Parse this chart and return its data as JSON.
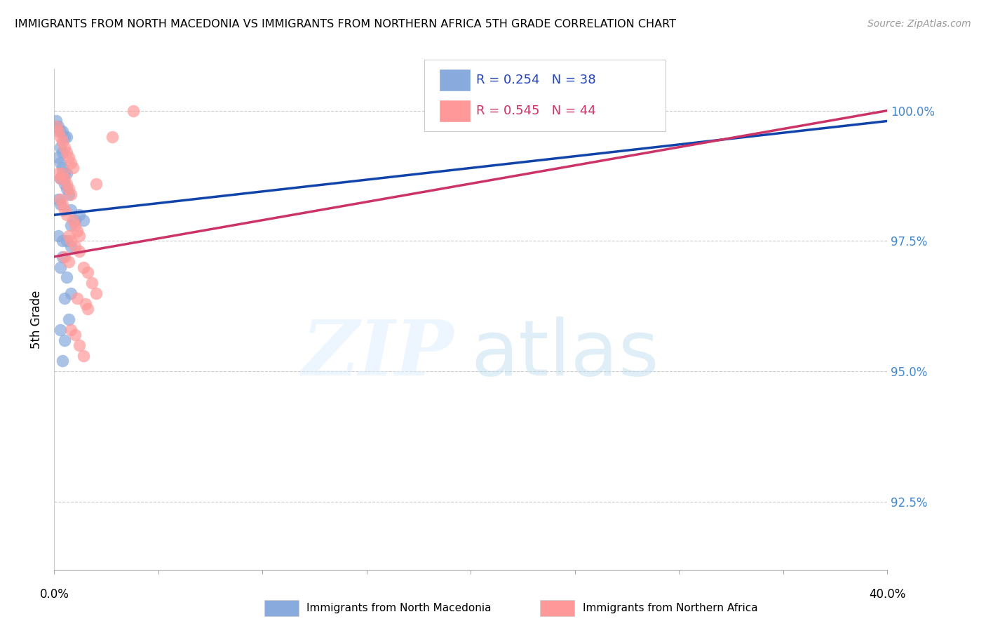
{
  "title": "IMMIGRANTS FROM NORTH MACEDONIA VS IMMIGRANTS FROM NORTHERN AFRICA 5TH GRADE CORRELATION CHART",
  "source": "Source: ZipAtlas.com",
  "ylabel": "5th Grade",
  "y_ticks": [
    92.5,
    95.0,
    97.5,
    100.0
  ],
  "y_tick_labels": [
    "92.5%",
    "95.0%",
    "97.5%",
    "100.0%"
  ],
  "xlim": [
    0.0,
    0.4
  ],
  "ylim": [
    91.2,
    100.8
  ],
  "blue_R": 0.254,
  "blue_N": 38,
  "pink_R": 0.545,
  "pink_N": 44,
  "blue_color": "#88AADD",
  "pink_color": "#FF9999",
  "blue_line_color": "#1144AA",
  "pink_line_color": "#CC3366",
  "legend_label_blue": "Immigrants from North Macedonia",
  "legend_label_pink": "Immigrants from Northern Africa",
  "blue_line": [
    [
      0.0,
      98.0
    ],
    [
      0.4,
      99.8
    ]
  ],
  "pink_line": [
    [
      0.0,
      97.2
    ],
    [
      0.4,
      100.0
    ]
  ],
  "blue_dots_x": [
    0.001,
    0.002,
    0.003,
    0.004,
    0.005,
    0.006,
    0.003,
    0.004,
    0.002,
    0.003,
    0.004,
    0.005,
    0.006,
    0.003,
    0.004,
    0.005,
    0.006,
    0.007,
    0.002,
    0.003,
    0.008,
    0.012,
    0.014,
    0.01,
    0.008,
    0.002,
    0.004,
    0.006,
    0.008,
    0.004,
    0.003,
    0.006,
    0.008,
    0.005,
    0.007,
    0.003,
    0.005,
    0.004
  ],
  "blue_dots_y": [
    99.8,
    99.7,
    99.6,
    99.6,
    99.5,
    99.5,
    99.3,
    99.2,
    99.1,
    99.0,
    98.9,
    98.8,
    98.8,
    98.7,
    98.7,
    98.6,
    98.5,
    98.4,
    98.3,
    98.2,
    98.1,
    98.0,
    97.9,
    97.9,
    97.8,
    97.6,
    97.5,
    97.5,
    97.4,
    97.2,
    97.0,
    96.8,
    96.5,
    96.4,
    96.0,
    95.8,
    95.6,
    95.2
  ],
  "pink_dots_x": [
    0.001,
    0.002,
    0.003,
    0.004,
    0.005,
    0.006,
    0.007,
    0.008,
    0.009,
    0.002,
    0.003,
    0.004,
    0.005,
    0.006,
    0.007,
    0.008,
    0.003,
    0.004,
    0.005,
    0.006,
    0.009,
    0.01,
    0.011,
    0.012,
    0.007,
    0.008,
    0.01,
    0.012,
    0.005,
    0.007,
    0.014,
    0.016,
    0.018,
    0.02,
    0.011,
    0.015,
    0.016,
    0.008,
    0.01,
    0.012,
    0.014,
    0.038,
    0.028,
    0.02
  ],
  "pink_dots_y": [
    99.7,
    99.6,
    99.5,
    99.4,
    99.3,
    99.2,
    99.1,
    99.0,
    98.9,
    98.8,
    98.7,
    98.8,
    98.7,
    98.6,
    98.5,
    98.4,
    98.3,
    98.2,
    98.1,
    98.0,
    97.9,
    97.8,
    97.7,
    97.6,
    97.6,
    97.5,
    97.4,
    97.3,
    97.2,
    97.1,
    97.0,
    96.9,
    96.7,
    96.5,
    96.4,
    96.3,
    96.2,
    95.8,
    95.7,
    95.5,
    95.3,
    100.0,
    99.5,
    98.6
  ]
}
